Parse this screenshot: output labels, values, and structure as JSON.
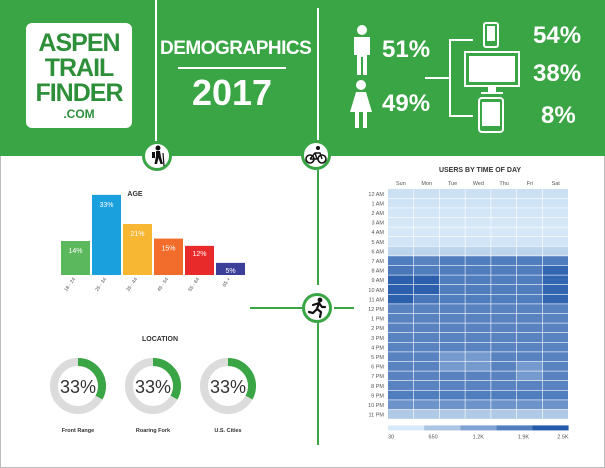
{
  "logo": {
    "line1": "ASPEN",
    "line2": "TRAIL",
    "line3": "FINDER",
    "line4": ".COM"
  },
  "header": {
    "title": "DEMOGRAPHICS",
    "year": "2017"
  },
  "gender": {
    "male_pct": "51%",
    "female_pct": "49%"
  },
  "devices": {
    "mobile_pct": "54%",
    "desktop_pct": "38%",
    "tablet_pct": "8%"
  },
  "colors": {
    "brand_green": "#3aa544",
    "heat_low": "#cfe6f7",
    "heat_high": "#2b63b0"
  },
  "icons": [
    "logo-badge",
    "hiker-icon",
    "bicycle-icon",
    "runner-icon",
    "male-person-icon",
    "female-person-icon",
    "phone-icon",
    "monitor-icon",
    "tablet-icon"
  ],
  "chart_data": [
    {
      "type": "bar",
      "title": "AGE",
      "categories": [
        "18 - 24",
        "25 - 34",
        "35 - 44",
        "45 - 54",
        "55 - 64",
        "65 +"
      ],
      "values": [
        14,
        33,
        21,
        15,
        12,
        5
      ],
      "labels": [
        "14%",
        "33%",
        "21%",
        "15%",
        "12%",
        "5%"
      ],
      "colors": [
        "#5cb85c",
        "#1aa0dc",
        "#f7b733",
        "#f26c2b",
        "#e82a2a",
        "#3b3f9a"
      ],
      "ylim": [
        0,
        35
      ]
    },
    {
      "type": "pie",
      "title": "LOCATION",
      "items": [
        {
          "name": "Front Range",
          "value": 33,
          "label": "33%"
        },
        {
          "name": "Roaring Fork",
          "value": 33,
          "label": "33%"
        },
        {
          "name": "U.S. Cities",
          "value": 33,
          "label": "33%"
        }
      ]
    },
    {
      "type": "heatmap",
      "title": "USERS BY TIME OF DAY",
      "x": [
        "Sun",
        "Mon",
        "Tue",
        "Wed",
        "Thu",
        "Fri",
        "Sat"
      ],
      "y": [
        "12 AM",
        "1 AM",
        "2 AM",
        "3 AM",
        "4 AM",
        "5 AM",
        "6 AM",
        "7 AM",
        "8 AM",
        "9 AM",
        "10 AM",
        "11 AM",
        "12 PM",
        "1 PM",
        "2 PM",
        "3 PM",
        "4 PM",
        "5 PM",
        "6 PM",
        "7 PM",
        "8 PM",
        "9 PM",
        "10 PM",
        "11 PM"
      ],
      "values": [
        [
          200,
          200,
          200,
          200,
          200,
          200,
          200
        ],
        [
          150,
          150,
          150,
          150,
          150,
          150,
          150
        ],
        [
          100,
          100,
          100,
          100,
          100,
          100,
          100
        ],
        [
          80,
          80,
          80,
          80,
          80,
          80,
          80
        ],
        [
          60,
          60,
          60,
          60,
          60,
          60,
          60
        ],
        [
          120,
          120,
          120,
          120,
          120,
          120,
          120
        ],
        [
          400,
          400,
          400,
          400,
          400,
          400,
          400
        ],
        [
          1900,
          1800,
          1900,
          1900,
          1900,
          1900,
          1900
        ],
        [
          2000,
          1900,
          1900,
          1900,
          1900,
          1900,
          2300
        ],
        [
          2400,
          2400,
          1900,
          1900,
          1900,
          1900,
          2300
        ],
        [
          2400,
          2400,
          1900,
          1900,
          1900,
          1900,
          2300
        ],
        [
          2400,
          2000,
          1900,
          1900,
          1900,
          1900,
          2300
        ],
        [
          1800,
          1800,
          1800,
          1800,
          1800,
          1800,
          1800
        ],
        [
          1800,
          1800,
          1800,
          1800,
          1800,
          1800,
          1800
        ],
        [
          1800,
          1800,
          1800,
          1800,
          1800,
          1800,
          1800
        ],
        [
          1800,
          1800,
          1800,
          1800,
          1800,
          1800,
          1800
        ],
        [
          1800,
          1800,
          1800,
          1800,
          1800,
          1800,
          1800
        ],
        [
          1800,
          1800,
          1400,
          1400,
          1800,
          1800,
          1800
        ],
        [
          1800,
          1800,
          1400,
          1400,
          1800,
          1400,
          1800
        ],
        [
          1800,
          1800,
          1800,
          1800,
          1800,
          1400,
          1800
        ],
        [
          1800,
          1800,
          1800,
          1800,
          1800,
          1800,
          1800
        ],
        [
          1900,
          1900,
          1900,
          1900,
          1900,
          1900,
          1900
        ],
        [
          1500,
          1500,
          1500,
          1500,
          1500,
          1500,
          1500
        ],
        [
          600,
          600,
          600,
          600,
          600,
          600,
          600
        ]
      ],
      "scale_labels": [
        "30",
        "650",
        "1.2K",
        "1.9K",
        "2.5K"
      ],
      "range": [
        30,
        2500
      ]
    }
  ]
}
